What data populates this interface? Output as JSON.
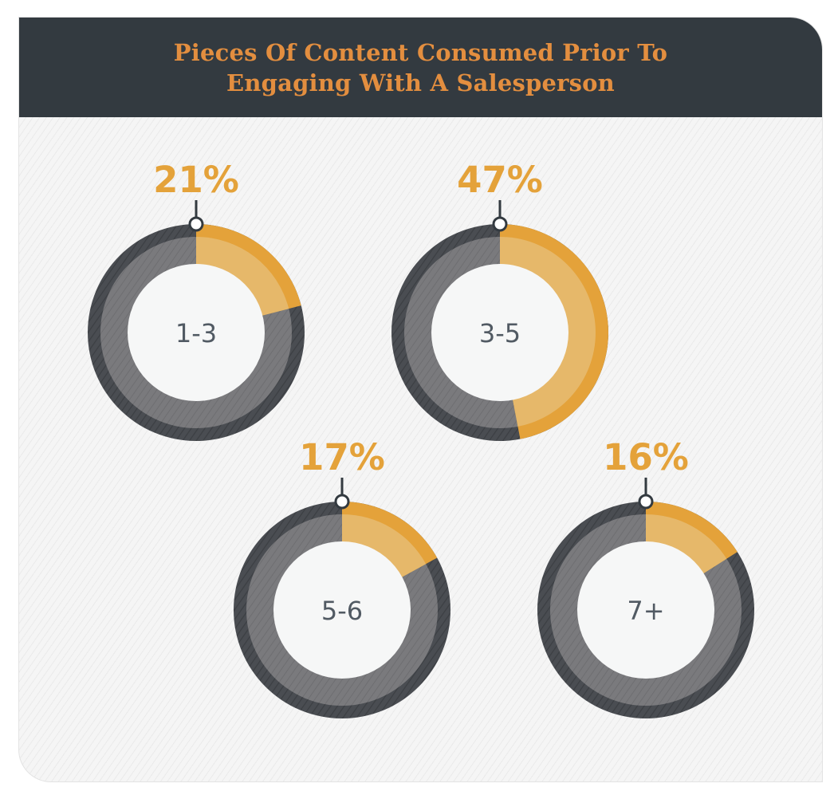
{
  "colors": {
    "header_bg": "#333a40",
    "title": "#e38e3f",
    "accent": "#e4a23a",
    "accent_light": "#e6b86a",
    "ring_dark": "#4a4d52",
    "ring_gray": "#7a7a7d",
    "center_fill": "#f6f7f7",
    "label_text": "#515a63",
    "pct_text": "#e4a23a"
  },
  "header": {
    "title_lines": [
      "Pieces Of Content Consumed Prior To",
      "Engaging With A Salesperson"
    ]
  },
  "chart_data": {
    "type": "pie",
    "title": "Pieces Of Content Consumed Prior To Engaging With A Salesperson",
    "unit": "%",
    "categories": [
      "1-3",
      "3-5",
      "5-6",
      "7+"
    ],
    "values": [
      21,
      47,
      17,
      16
    ],
    "value_labels": [
      "21%",
      "47%",
      "17%",
      "16%"
    ]
  }
}
